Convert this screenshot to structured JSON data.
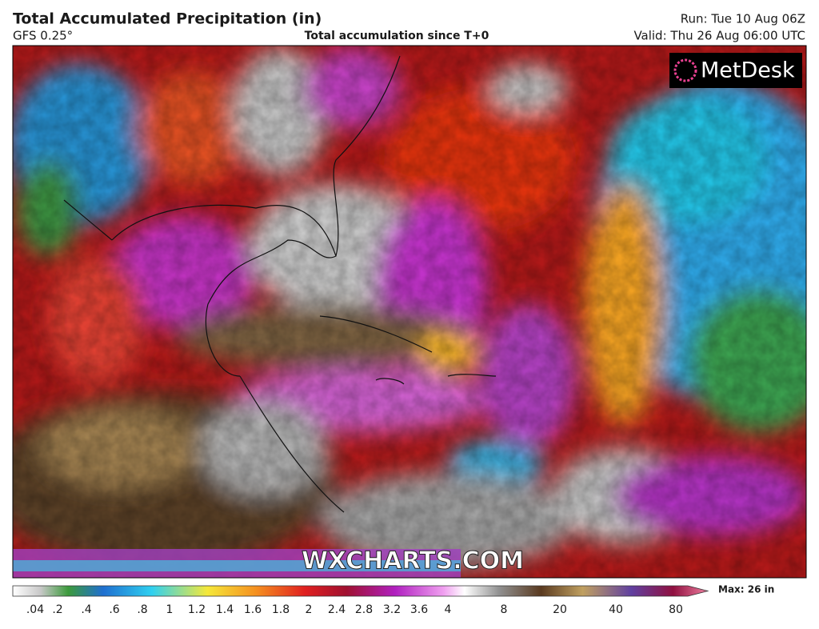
{
  "header": {
    "title": "Total Accumulated Precipitation (in)",
    "model": "GFS 0.25°",
    "subtitle": "Total accumulation since T+0",
    "run": "Run: Tue 10 Aug 06Z",
    "valid": "Valid: Thu 26 Aug 06:00 UTC"
  },
  "logo": "MetDesk",
  "watermark": "WXCHARTS.COM",
  "colorbar": {
    "labels": [
      ".04",
      ".2",
      ".4",
      ".6",
      ".8",
      "1",
      "1.2",
      "1.4",
      "1.6",
      "1.8",
      "2",
      "2.4",
      "2.8",
      "3.2",
      "3.6",
      "4",
      "8",
      "20",
      "40",
      "80"
    ],
    "max": "Max: 26 in"
  }
}
